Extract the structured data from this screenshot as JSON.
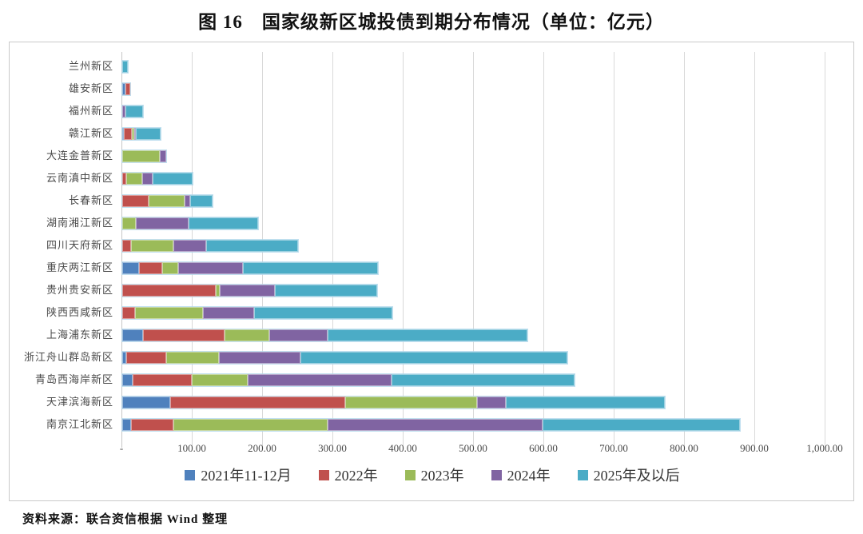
{
  "title": "图 16　国家级新区城投债到期分布情况（单位：亿元）",
  "source": "资料来源：联合资信根据 Wind 整理",
  "chart_data": {
    "type": "bar",
    "orientation": "horizontal",
    "stacked": true,
    "grid": true,
    "legend_position": "bottom",
    "xlim": [
      0,
      1000
    ],
    "x_ticks": [
      "-",
      "100.00",
      "200.00",
      "300.00",
      "400.00",
      "500.00",
      "600.00",
      "700.00",
      "800.00",
      "900.00",
      "1,000.00"
    ],
    "categories": [
      "兰州新区",
      "雄安新区",
      "福州新区",
      "赣江新区",
      "大连金普新区",
      "云南滇中新区",
      "长春新区",
      "湖南湘江新区",
      "四川天府新区",
      "重庆两江新区",
      "贵州贵安新区",
      "陕西西咸新区",
      "上海浦东新区",
      "浙江舟山群岛新区",
      "青岛西海岸新区",
      "天津滨海新区",
      "南京江北新区"
    ],
    "series": [
      {
        "name": "2021年11-12月",
        "color": "#4F81BD",
        "values": [
          0,
          5,
          0,
          2,
          0,
          0,
          0,
          0,
          0,
          24,
          0,
          0,
          30,
          6,
          15,
          68,
          13
        ]
      },
      {
        "name": "2022年",
        "color": "#C0504D",
        "values": [
          0,
          6,
          0,
          12,
          0,
          6,
          38,
          0,
          12,
          33,
          133,
          18,
          115,
          56,
          84,
          249,
          60
        ]
      },
      {
        "name": "2023年",
        "color": "#9BBB59",
        "values": [
          0,
          0,
          0,
          3,
          53,
          22,
          51,
          19,
          61,
          23,
          6,
          97,
          64,
          75,
          80,
          188,
          219
        ]
      },
      {
        "name": "2024年",
        "color": "#8064A2",
        "values": [
          0,
          0,
          5,
          2,
          10,
          15,
          8,
          75,
          46,
          92,
          78,
          73,
          83,
          117,
          204,
          40,
          306
        ]
      },
      {
        "name": "2025年及以后",
        "color": "#4BACC6",
        "values": [
          8,
          0,
          25,
          36,
          0,
          57,
          31,
          99,
          131,
          192,
          146,
          196,
          284,
          379,
          260,
          227,
          280
        ]
      }
    ],
    "totals": [
      8,
      11,
      30,
      55,
      63,
      100,
      128,
      193,
      250,
      364,
      363,
      384,
      576,
      633,
      643,
      772,
      878
    ]
  }
}
